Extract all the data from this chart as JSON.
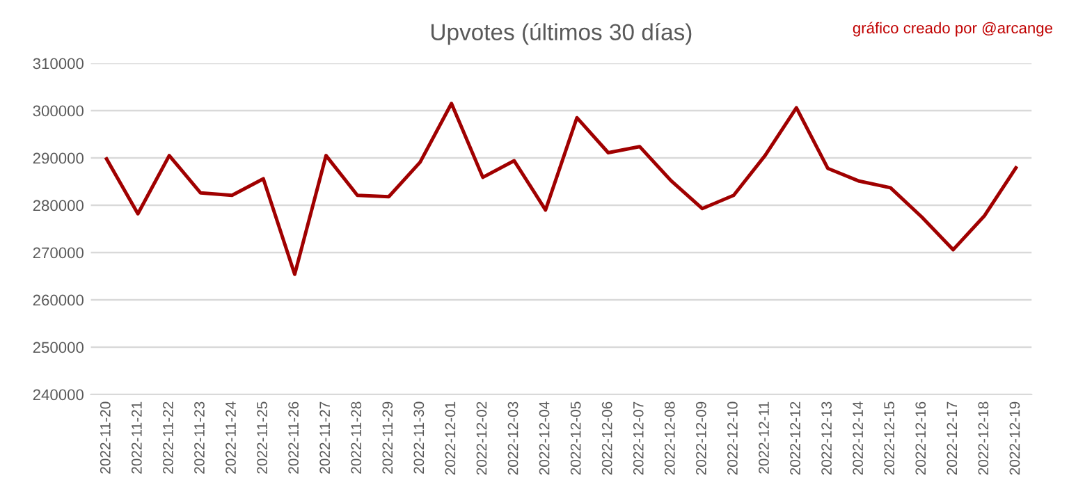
{
  "chart_data": {
    "type": "line",
    "title": "Upvotes (últimos 30 días)",
    "annotations": [
      "gráfico creado por @arcange"
    ],
    "categories": [
      "2022-11-20",
      "2022-11-21",
      "2022-11-22",
      "2022-11-23",
      "2022-11-24",
      "2022-11-25",
      "2022-11-26",
      "2022-11-27",
      "2022-11-28",
      "2022-11-29",
      "2022-11-30",
      "2022-12-01",
      "2022-12-02",
      "2022-12-03",
      "2022-12-04",
      "2022-12-05",
      "2022-12-06",
      "2022-12-07",
      "2022-12-08",
      "2022-12-09",
      "2022-12-10",
      "2022-12-11",
      "2022-12-12",
      "2022-12-13",
      "2022-12-14",
      "2022-12-15",
      "2022-12-16",
      "2022-12-17",
      "2022-12-18",
      "2022-12-19"
    ],
    "series": [
      {
        "color": "#a00000",
        "values": [
          289800,
          278200,
          290500,
          282600,
          282100,
          285600,
          265400,
          290500,
          282100,
          281800,
          289100,
          301500,
          285900,
          289400,
          279000,
          298500,
          291100,
          292400,
          285200,
          279300,
          282100,
          290500,
          300600,
          287800,
          285100,
          283700,
          277500,
          270600,
          277800,
          287900
        ]
      }
    ],
    "ylim": [
      240000,
      310000
    ],
    "yticks": [
      240000,
      250000,
      260000,
      270000,
      280000,
      290000,
      300000,
      310000
    ],
    "grid": "y",
    "marker": "none",
    "line_style": "solid"
  }
}
